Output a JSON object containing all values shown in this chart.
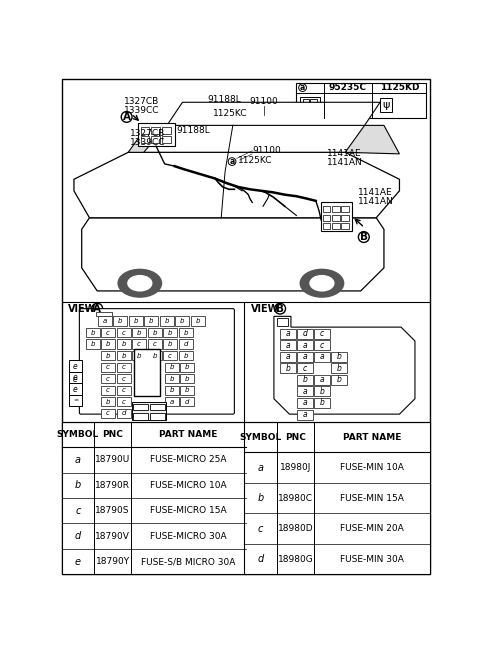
{
  "bg_color": "#ffffff",
  "view_a_table": {
    "symbol_col": [
      "a",
      "b",
      "c",
      "d",
      "e"
    ],
    "pnc_col": [
      "18790U",
      "18790R",
      "18790S",
      "18790V",
      "18790Y"
    ],
    "part_col": [
      "FUSE-MICRO 25A",
      "FUSE-MICRO 10A",
      "FUSE-MICRO 15A",
      "FUSE-MICRO 30A",
      "FUSE-S/B MICRO 30A"
    ]
  },
  "view_b_table": {
    "symbol_col": [
      "a",
      "b",
      "c",
      "d"
    ],
    "pnc_col": [
      "18980J",
      "18980C",
      "18980D",
      "18980G"
    ],
    "part_col": [
      "FUSE-MIN 10A",
      "FUSE-MIN 15A",
      "FUSE-MIN 20A",
      "FUSE-MIN 30A"
    ]
  },
  "view_a_rows": [
    [
      "a",
      "b",
      "b",
      "b",
      "b",
      "b",
      "b"
    ],
    [
      "b",
      "c",
      "c",
      "b",
      "b",
      "b",
      "b"
    ],
    [
      "b",
      "b",
      "b",
      "c",
      "c",
      "b",
      "d"
    ],
    [
      "b",
      "b",
      "b",
      "b",
      "c",
      "b"
    ],
    [
      "c",
      "c",
      "",
      "",
      "b",
      "b"
    ],
    [
      "c",
      "c",
      "",
      "",
      "b",
      "b"
    ],
    [
      "c",
      "c",
      "",
      "",
      "b",
      "b"
    ],
    [
      "b",
      "c",
      "",
      "",
      "a",
      "d"
    ],
    [
      "c",
      "d"
    ]
  ],
  "view_a_left_col": [
    "e",
    "e",
    "e",
    "="
  ],
  "view_b_rows": [
    [
      "a",
      "d",
      "c",
      ""
    ],
    [
      "a",
      "a",
      "c",
      ""
    ],
    [
      "a",
      "a",
      "a",
      "b"
    ],
    [
      "b",
      "c",
      "",
      "b"
    ],
    [
      "",
      "b",
      "a",
      "b"
    ],
    [
      "",
      "a",
      "b",
      ""
    ],
    [
      "",
      "a",
      "b",
      ""
    ],
    [
      "",
      "a",
      "",
      ""
    ]
  ],
  "view_b_top_blank": true,
  "ref_pnc1": "95235C",
  "ref_pnc2": "1125KD",
  "label_91100": "91100",
  "label_91188L": "91188L",
  "label_1125KC": "1125KC",
  "label_1327CB": "1327CB",
  "label_1339CC": "1339CC",
  "label_1141AE": "1141AE",
  "label_1141AN": "1141AN"
}
